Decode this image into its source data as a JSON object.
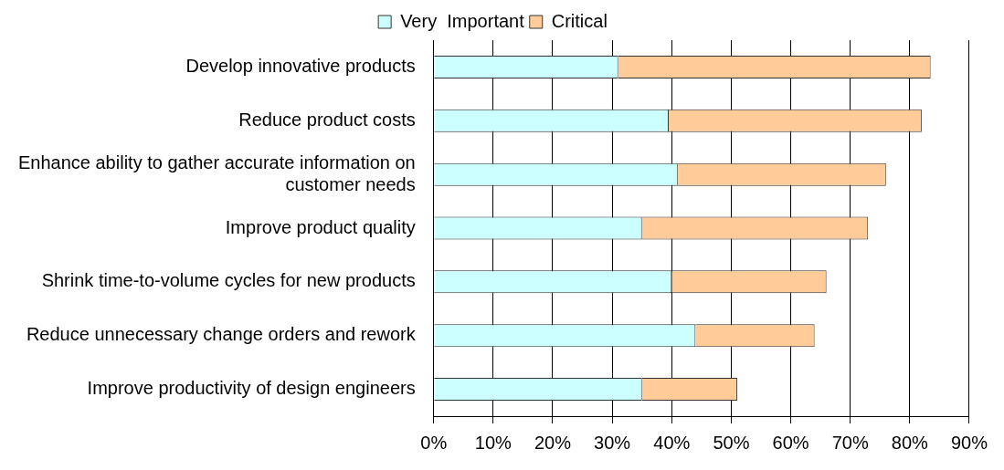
{
  "chart_data": {
    "type": "bar",
    "orientation": "horizontal",
    "stacked": true,
    "categories": [
      "Develop innovative products",
      "Reduce product costs",
      "Enhance ability to gather accurate information on customer needs",
      "Improve product quality",
      "Shrink time-to-volume cycles for new products",
      "Reduce unnecessary change orders and rework",
      "Improve productivity of design engineers"
    ],
    "series": [
      {
        "name": "Very  Important",
        "color": "#ccffff",
        "values": [
          31,
          39.5,
          41,
          35,
          40,
          44,
          35
        ]
      },
      {
        "name": "Critical",
        "color": "#ffcc99",
        "values": [
          52.5,
          42.5,
          35,
          38,
          26,
          20,
          16
        ]
      }
    ],
    "xlim": [
      0,
      90
    ],
    "xticks": [
      {
        "value": 0,
        "label": "0%"
      },
      {
        "value": 10,
        "label": "10%"
      },
      {
        "value": 20,
        "label": "20%"
      },
      {
        "value": 30,
        "label": "30%"
      },
      {
        "value": 40,
        "label": "40%"
      },
      {
        "value": 50,
        "label": "50%"
      },
      {
        "value": 60,
        "label": "60%"
      },
      {
        "value": 70,
        "label": "70%"
      },
      {
        "value": 80,
        "label": "80%"
      },
      {
        "value": 90,
        "label": "90%"
      }
    ],
    "grid": "x",
    "legend": "top"
  }
}
